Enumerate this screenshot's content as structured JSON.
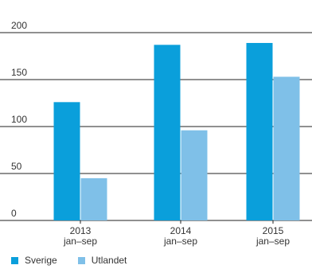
{
  "chart_data": {
    "type": "bar",
    "categories": [
      "2013\njan–sep",
      "2014\njan–sep",
      "2015\njan–sep"
    ],
    "series": [
      {
        "name": "Sverige",
        "values": [
          126,
          187,
          189
        ],
        "color": "#0a9fdb"
      },
      {
        "name": "Utlandet",
        "values": [
          45,
          96,
          153
        ],
        "color": "#7fc0e8"
      }
    ],
    "yticks": [
      0,
      50,
      100,
      150,
      200
    ],
    "ylim": [
      0,
      200
    ],
    "grid": true,
    "title": "",
    "xlabel": "",
    "ylabel": "",
    "legend_position": "bottom-left"
  }
}
